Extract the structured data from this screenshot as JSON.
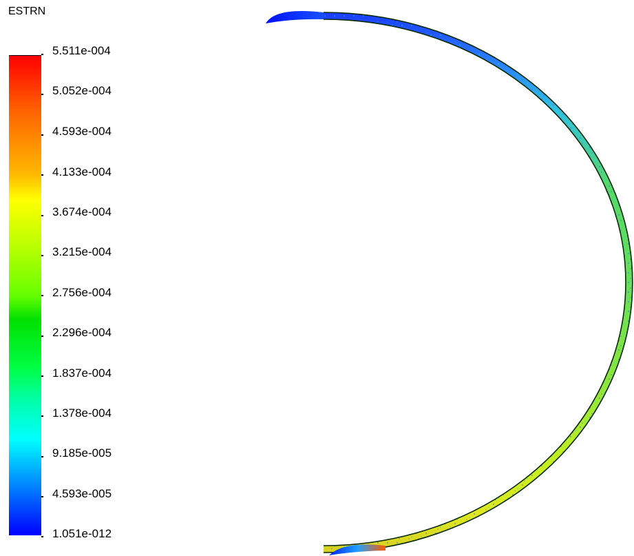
{
  "legend": {
    "title": "ESTRN",
    "labels": [
      "5.511e-004",
      "5.052e-004",
      "4.593e-004",
      "4.133e-004",
      "3.674e-004",
      "3.215e-004",
      "2.756e-004",
      "2.296e-004",
      "1.837e-004",
      "1.378e-004",
      "9.185e-005",
      "4.593e-005",
      "1.051e-012"
    ],
    "colormap": [
      "#ff0000",
      "#ff6600",
      "#ffbb00",
      "#ffff00",
      "#66ff00",
      "#00e000",
      "#00ffaa",
      "#00ffff",
      "#0099ff",
      "#0000ff"
    ]
  },
  "colors": {
    "background": "#ffffff",
    "text": "#000000",
    "ring_outline": "#0a2a0a"
  }
}
